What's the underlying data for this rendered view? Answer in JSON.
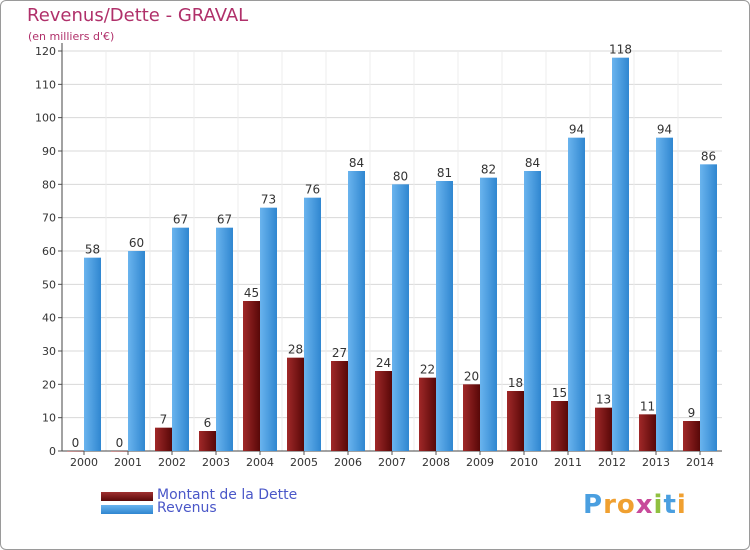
{
  "title": "Revenus/Dette - GRAVAL",
  "subtitle": "(en milliers d'€)",
  "legend": {
    "dette_label": "Montant de la Dette",
    "revenus_label": "Revenus"
  },
  "logo": {
    "text": "Proxiti",
    "letters": [
      "P",
      "r",
      "o",
      "x",
      "i",
      "t",
      "i"
    ],
    "colors": [
      "#4a9fe0",
      "#f0a030",
      "#f0a030",
      "#c84a9a",
      "#90c040",
      "#4a9fe0",
      "#f0a030"
    ]
  },
  "colors": {
    "dette": "#7a1414",
    "revenus": "#4a9fe0",
    "title": "#b0306a"
  },
  "chart_data": {
    "type": "bar",
    "categories": [
      "2000",
      "2001",
      "2002",
      "2003",
      "2004",
      "2005",
      "2006",
      "2007",
      "2008",
      "2009",
      "2010",
      "2011",
      "2012",
      "2013",
      "2014"
    ],
    "series": [
      {
        "name": "Montant de la Dette",
        "values": [
          0,
          0,
          7,
          6,
          45,
          28,
          27,
          24,
          22,
          20,
          18,
          15,
          13,
          11,
          9
        ]
      },
      {
        "name": "Revenus",
        "values": [
          58,
          60,
          67,
          67,
          73,
          76,
          84,
          80,
          81,
          82,
          84,
          94,
          118,
          94,
          86
        ]
      }
    ],
    "ylim": [
      0,
      120
    ],
    "yticks": [
      0,
      10,
      20,
      30,
      40,
      50,
      60,
      70,
      80,
      90,
      100,
      110,
      120
    ],
    "grid": true,
    "legend_position": "bottom-left"
  }
}
